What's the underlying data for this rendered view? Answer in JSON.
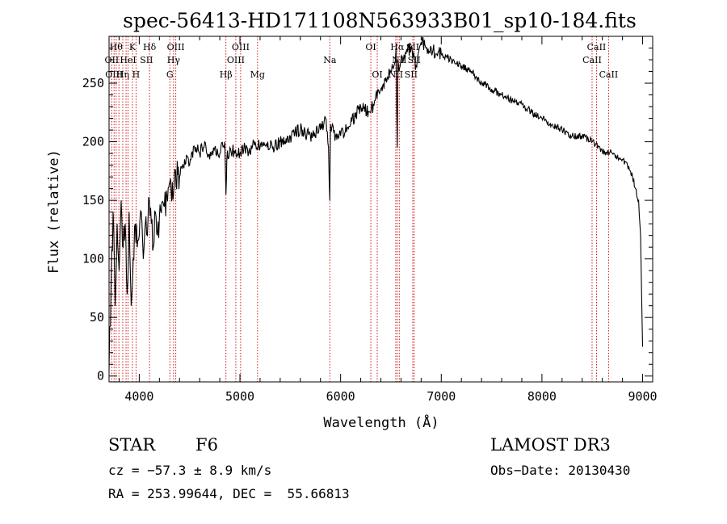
{
  "chart_data": {
    "type": "line",
    "title": "spec-56413-HD171108N563933B01_sp10-184.fits",
    "xlabel": "Wavelength (Å)",
    "ylabel": "Flux (relative)",
    "xlim": [
      3700,
      9100
    ],
    "ylim": [
      -5,
      290
    ],
    "xticks": [
      4000,
      5000,
      6000,
      7000,
      8000,
      9000
    ],
    "xtick_labels": [
      "4000",
      "5000",
      "6000",
      "7000",
      "8000",
      "9000"
    ],
    "yticks": [
      0,
      50,
      100,
      150,
      200,
      250
    ],
    "ytick_labels": [
      "0",
      "50",
      "100",
      "150",
      "200",
      "250"
    ],
    "grid": false,
    "series": [
      {
        "name": "flux",
        "x": [
          3700,
          3720,
          3740,
          3760,
          3780,
          3800,
          3820,
          3840,
          3860,
          3880,
          3900,
          3920,
          3940,
          3960,
          3980,
          4000,
          4020,
          4040,
          4060,
          4080,
          4100,
          4120,
          4140,
          4160,
          4180,
          4200,
          4250,
          4300,
          4340,
          4360,
          4400,
          4450,
          4500,
          4550,
          4600,
          4650,
          4700,
          4750,
          4800,
          4850,
          4861,
          4870,
          4900,
          4950,
          5000,
          5050,
          5100,
          5150,
          5200,
          5300,
          5400,
          5500,
          5600,
          5700,
          5800,
          5850,
          5880,
          5893,
          5900,
          5950,
          6000,
          6100,
          6200,
          6300,
          6350,
          6400,
          6450,
          6500,
          6530,
          6550,
          6563,
          6570,
          6580,
          6600,
          6650,
          6700,
          6750,
          6800,
          6850,
          6900,
          6950,
          7000,
          7100,
          7200,
          7300,
          7400,
          7500,
          7600,
          7700,
          7800,
          7900,
          8000,
          8100,
          8200,
          8300,
          8400,
          8500,
          8600,
          8700,
          8800,
          8850,
          8900,
          8930,
          8960,
          8980,
          9000
        ],
        "y": [
          5,
          80,
          140,
          60,
          130,
          90,
          150,
          110,
          130,
          70,
          140,
          60,
          100,
          130,
          110,
          120,
          140,
          100,
          130,
          120,
          150,
          130,
          110,
          140,
          120,
          135,
          145,
          165,
          155,
          175,
          170,
          185,
          180,
          195,
          190,
          200,
          185,
          195,
          190,
          200,
          155,
          185,
          195,
          190,
          190,
          195,
          190,
          200,
          195,
          195,
          200,
          205,
          210,
          205,
          210,
          220,
          195,
          150,
          215,
          205,
          205,
          215,
          230,
          225,
          240,
          245,
          255,
          260,
          265,
          280,
          195,
          270,
          260,
          270,
          275,
          280,
          265,
          285,
          280,
          280,
          275,
          275,
          270,
          265,
          260,
          250,
          245,
          240,
          235,
          232,
          225,
          220,
          215,
          210,
          205,
          205,
          200,
          192,
          190,
          185,
          180,
          170,
          160,
          150,
          120,
          25
        ]
      }
    ],
    "line_groups": [
      {
        "color": "#cc0000",
        "wavelengths": [
          3727,
          3750,
          3771,
          3798,
          3836,
          3869,
          3889,
          3933,
          3968,
          4102,
          4304,
          4341,
          4363,
          4861,
          4959,
          5007,
          5175,
          5893,
          6300,
          6364,
          6548,
          6563,
          6583,
          6717,
          6731,
          8498,
          8542,
          8662
        ]
      }
    ],
    "line_labels": [
      {
        "text": "Hθ",
        "wavelength": 3770,
        "row": 1
      },
      {
        "text": "K",
        "wavelength": 3933,
        "row": 1
      },
      {
        "text": "Hδ",
        "wavelength": 4102,
        "row": 1
      },
      {
        "text": "OIII",
        "wavelength": 4363,
        "row": 1
      },
      {
        "text": "OIII",
        "wavelength": 5007,
        "row": 1
      },
      {
        "text": "OI",
        "wavelength": 6300,
        "row": 1
      },
      {
        "text": "Hα",
        "wavelength": 6563,
        "row": 1
      },
      {
        "text": "SII",
        "wavelength": 6717,
        "row": 1
      },
      {
        "text": "CaII",
        "wavelength": 8542,
        "row": 1
      },
      {
        "text": "OII",
        "wavelength": 3727,
        "row": 2
      },
      {
        "text": "HeI",
        "wavelength": 3889,
        "row": 2
      },
      {
        "text": "SII",
        "wavelength": 4072,
        "row": 2
      },
      {
        "text": "Hγ",
        "wavelength": 4341,
        "row": 2
      },
      {
        "text": "OIII",
        "wavelength": 4959,
        "row": 2
      },
      {
        "text": "Na",
        "wavelength": 5893,
        "row": 2
      },
      {
        "text": "NII",
        "wavelength": 6583,
        "row": 2
      },
      {
        "text": "SII",
        "wavelength": 6731,
        "row": 2
      },
      {
        "text": "CaII",
        "wavelength": 8498,
        "row": 2
      },
      {
        "text": "OIII",
        "wavelength": 3750,
        "row": 3
      },
      {
        "text": "Hη",
        "wavelength": 3836,
        "row": 3
      },
      {
        "text": "H",
        "wavelength": 3968,
        "row": 3
      },
      {
        "text": "G",
        "wavelength": 4304,
        "row": 3
      },
      {
        "text": "Hβ",
        "wavelength": 4861,
        "row": 3
      },
      {
        "text": "Mg",
        "wavelength": 5175,
        "row": 3
      },
      {
        "text": "OI",
        "wavelength": 6364,
        "row": 3
      },
      {
        "text": "NII",
        "wavelength": 6548,
        "row": 3
      },
      {
        "text": "SII",
        "wavelength": 6700,
        "row": 3
      },
      {
        "text": "CaII",
        "wavelength": 8662,
        "row": 3
      }
    ]
  },
  "footer": {
    "object_type": "STAR",
    "subclass": "F6",
    "survey": "LAMOST DR3",
    "cz": "cz = −57.3 ± 8.9 km/s",
    "obs_date": "Obs−Date: 20130430",
    "coords": "RA = 253.99644, DEC =  55.66813"
  }
}
